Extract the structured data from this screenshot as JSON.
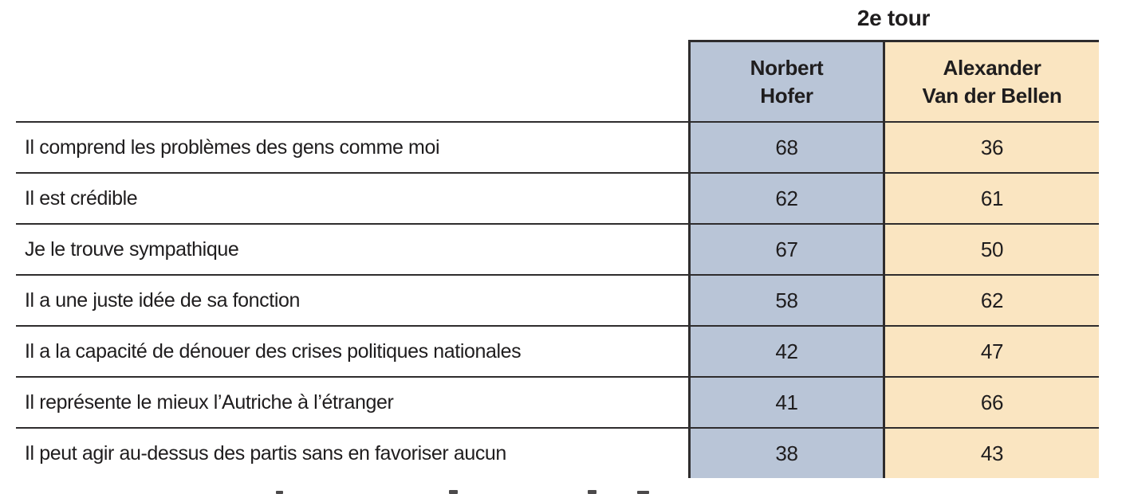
{
  "title": "2e tour",
  "colors": {
    "hofer_column": "#b9c5d7",
    "vdb_column": "#fae5c1",
    "border": "#2e2c2d",
    "text": "#1f1d1e"
  },
  "table": {
    "columns": [
      {
        "name": "Norbert Hofer",
        "line1": "Norbert",
        "line2": "Hofer"
      },
      {
        "name": "Alexander Van der Bellen",
        "line1": "Alexander",
        "line2": "Van der Bellen"
      }
    ],
    "rows": [
      {
        "label": "Il comprend les problèmes des gens comme moi",
        "hofer": "68",
        "vdb": "36"
      },
      {
        "label": "Il est crédible",
        "hofer": "62",
        "vdb": "61"
      },
      {
        "label": "Je le trouve sympathique",
        "hofer": "67",
        "vdb": "50"
      },
      {
        "label": "Il a une juste idée de sa fonction",
        "hofer": "58",
        "vdb": "62"
      },
      {
        "label": "Il a la capacité de dénouer des crises politiques nationales",
        "hofer": "42",
        "vdb": "47"
      },
      {
        "label": "Il représente le mieux l’Autriche à l’étranger",
        "hofer": "41",
        "vdb": "66"
      },
      {
        "label": "Il peut agir au-dessus des partis sans en favoriser aucun",
        "hofer": "38",
        "vdb": "43"
      }
    ]
  },
  "chart_data": {
    "type": "table",
    "title": "2e tour",
    "categories": [
      "Il comprend les problèmes des gens comme moi",
      "Il est crédible",
      "Je le trouve sympathique",
      "Il a une juste idée de sa fonction",
      "Il a la capacité de dénouer des crises politiques nationales",
      "Il représente le mieux l’Autriche à l’étranger",
      "Il peut agir au-dessus des partis sans en favoriser aucun"
    ],
    "series": [
      {
        "name": "Norbert Hofer",
        "values": [
          68,
          62,
          67,
          58,
          42,
          41,
          38
        ]
      },
      {
        "name": "Alexander Van der Bellen",
        "values": [
          36,
          61,
          50,
          62,
          47,
          66,
          43
        ]
      }
    ],
    "legend_position": "column-headers",
    "value_unit": "percent"
  }
}
